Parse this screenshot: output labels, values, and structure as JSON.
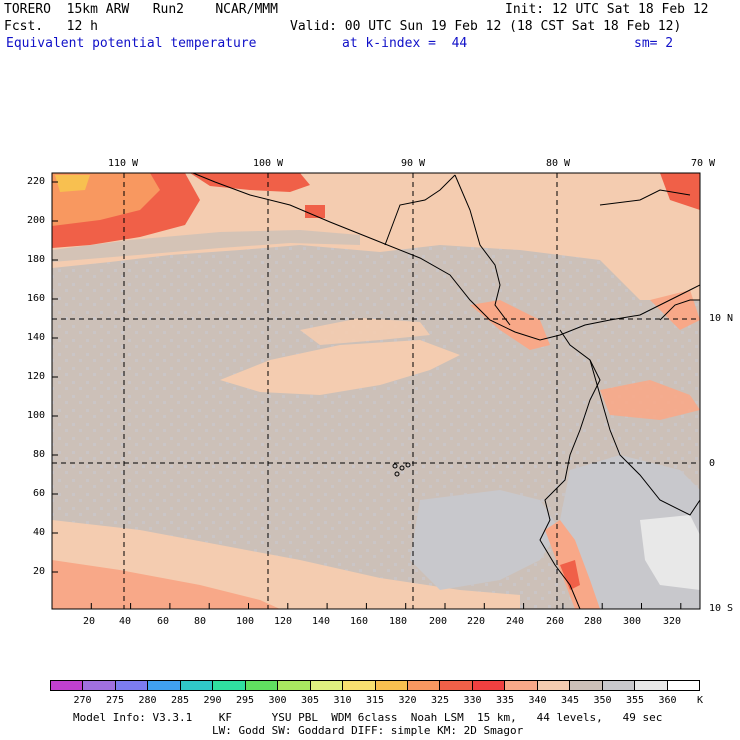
{
  "header": {
    "model": "TORERO  15km ARW   Run2    NCAR/MMM",
    "init": "Init: 12 UTC Sat 18 Feb 12",
    "fcst": "Fcst.   12 h",
    "valid": "Valid: 00 UTC Sun 19 Feb 12 (18 CST Sat 18 Feb 12)",
    "field": "Equivalent potential temperature",
    "kindex": "at k-index =  44",
    "smooth": "sm= 2"
  },
  "map": {
    "x_ticks": [
      "20",
      "40",
      "60",
      "80",
      "100",
      "120",
      "140",
      "160",
      "180",
      "200",
      "220",
      "240",
      "260",
      "280",
      "300",
      "320"
    ],
    "y_ticks": [
      "220",
      "200",
      "180",
      "160",
      "140",
      "120",
      "100",
      "80",
      "60",
      "40",
      "20"
    ],
    "lon_labels": [
      "110 W",
      "100 W",
      "90 W",
      "80 W",
      "70 W"
    ],
    "lat_labels": [
      "10 N",
      "0",
      "10 S"
    ]
  },
  "legend": {
    "labels": [
      "270",
      "275",
      "280",
      "285",
      "290",
      "295",
      "300",
      "305",
      "310",
      "315",
      "320",
      "325",
      "330",
      "335",
      "340",
      "345",
      "350",
      "355",
      "360"
    ],
    "unit": "K",
    "colors": [
      "#c040d0",
      "#a070e0",
      "#7c7cf0",
      "#40a0f0",
      "#30c8c8",
      "#30e0a0",
      "#60e060",
      "#a8e860",
      "#e0f080",
      "#f8e070",
      "#f8c050",
      "#f89860",
      "#f06048",
      "#f04040",
      "#f8a888",
      "#f4ccb0",
      "#ccc0b8",
      "#c8c8cc",
      "#e8e8e8",
      "#ffffff"
    ]
  },
  "footer": {
    "line1": "Model Info: V3.3.1    KF      YSU PBL  WDM 6class  Noah LSM  15 km,   44 levels,   49 sec",
    "line2": "LW: Godd SW: Goddard DIFF: simple KM: 2D Smagor"
  }
}
